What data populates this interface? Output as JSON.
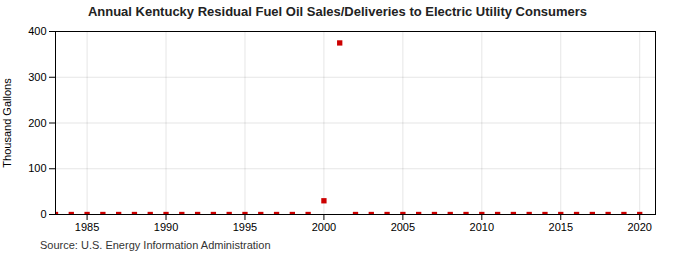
{
  "chart_data": {
    "type": "scatter",
    "title": "Annual Kentucky Residual Fuel Oil Sales/Deliveries to Electric Utility Consumers",
    "ylabel": "Thousand Gallons",
    "source": "Source: U.S. Energy Information Administration",
    "x": [
      1983,
      1984,
      1985,
      1986,
      1987,
      1988,
      1989,
      1990,
      1991,
      1992,
      1993,
      1994,
      1995,
      1996,
      1997,
      1998,
      1999,
      2000,
      2001,
      2002,
      2003,
      2004,
      2005,
      2006,
      2007,
      2008,
      2009,
      2010,
      2011,
      2012,
      2013,
      2014,
      2015,
      2016,
      2017,
      2018,
      2019,
      2020
    ],
    "values": [
      0,
      0,
      0,
      0,
      0,
      0,
      0,
      0,
      0,
      0,
      0,
      0,
      0,
      0,
      0,
      0,
      0,
      30,
      375,
      0,
      0,
      0,
      0,
      0,
      0,
      0,
      0,
      0,
      0,
      0,
      0,
      0,
      0,
      0,
      0,
      0,
      0,
      0
    ],
    "color": "#cc0000",
    "marker": "square",
    "xlim": [
      1983,
      2021
    ],
    "ylim": [
      0,
      400
    ],
    "xticks": [
      1985,
      1990,
      1995,
      2000,
      2005,
      2010,
      2015,
      2020
    ],
    "yticks": [
      0,
      100,
      200,
      300,
      400
    ],
    "grid": true
  }
}
